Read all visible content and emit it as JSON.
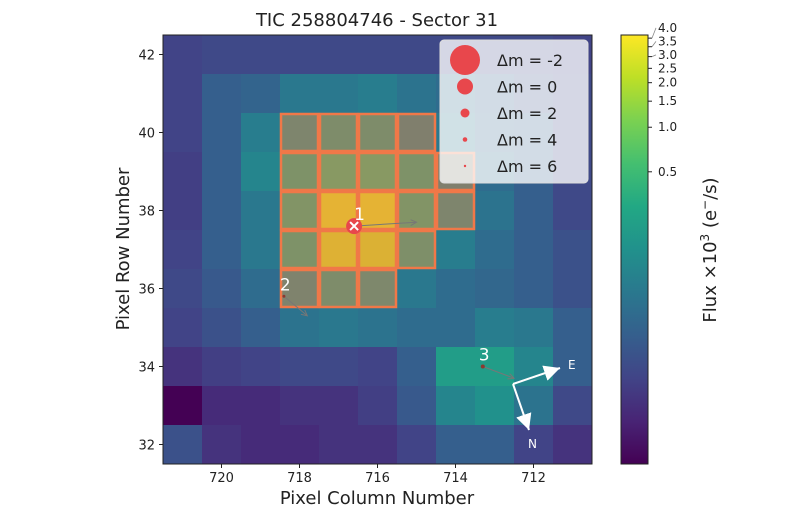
{
  "chart_data": {
    "type": "heatmap",
    "title": "TIC 258804746 - Sector 31",
    "xlabel": "Pixel Column Number",
    "ylabel": "Pixel Row Number",
    "x_inverted": true,
    "columns": [
      721,
      720,
      719,
      718,
      717,
      716,
      715,
      714,
      713,
      712,
      711
    ],
    "rows": [
      42,
      41,
      40,
      39,
      38,
      37,
      36,
      35,
      34,
      33,
      32
    ],
    "x_ticks": [
      720,
      718,
      716,
      714,
      712
    ],
    "y_ticks": [
      42,
      40,
      38,
      36,
      34,
      32
    ],
    "values": [
      [
        0.02,
        0.023,
        0.023,
        0.023,
        0.023,
        0.023,
        0.023,
        0.023,
        0.023,
        0.023,
        0.02
      ],
      [
        0.02,
        0.039,
        0.045,
        0.076,
        0.076,
        0.088,
        0.067,
        0.055,
        0.039,
        0.028,
        0.023
      ],
      [
        0.02,
        0.039,
        0.088,
        0.149,
        0.21,
        0.21,
        0.107,
        0.076,
        0.045,
        0.039,
        0.023
      ],
      [
        0.018,
        0.039,
        0.107,
        0.29,
        0.41,
        0.41,
        0.29,
        0.107,
        0.055,
        0.039,
        0.023
      ],
      [
        0.018,
        0.039,
        0.076,
        0.33,
        3.0,
        3.0,
        0.33,
        0.149,
        0.067,
        0.039,
        0.023
      ],
      [
        0.02,
        0.039,
        0.076,
        0.29,
        2.63,
        2.46,
        0.25,
        0.088,
        0.055,
        0.039,
        0.028
      ],
      [
        0.023,
        0.034,
        0.055,
        0.13,
        0.21,
        0.17,
        0.076,
        0.055,
        0.048,
        0.039,
        0.028
      ],
      [
        0.02,
        0.028,
        0.039,
        0.067,
        0.076,
        0.067,
        0.055,
        0.055,
        0.088,
        0.076,
        0.039
      ],
      [
        0.014,
        0.018,
        0.02,
        0.023,
        0.023,
        0.02,
        0.039,
        0.21,
        0.21,
        0.107,
        0.039
      ],
      [
        0.0053,
        0.012,
        0.012,
        0.014,
        0.014,
        0.018,
        0.034,
        0.107,
        0.149,
        0.067,
        0.023
      ],
      [
        0.028,
        0.014,
        0.012,
        0.012,
        0.014,
        0.014,
        0.02,
        0.039,
        0.039,
        0.02,
        0.014
      ]
    ],
    "colormap": "viridis",
    "colorbar": {
      "label_main": "Flux ×10",
      "label_exp": "3",
      "label_unit": " (e",
      "label_unit_sup": "−",
      "label_unit_end": "/s)",
      "ticks": [
        4.0,
        3.5,
        3.0,
        2.5,
        2.0,
        1.5,
        1.0,
        0.5
      ],
      "tick_labels": [
        "4.0",
        "3.5",
        "3.0",
        "2.5",
        "2.0",
        "1.5",
        "1.0",
        "0.5"
      ]
    },
    "aperture": [
      [
        40,
        718
      ],
      [
        40,
        717
      ],
      [
        40,
        716
      ],
      [
        40,
        715
      ],
      [
        39,
        718
      ],
      [
        39,
        717
      ],
      [
        39,
        716
      ],
      [
        39,
        715
      ],
      [
        39,
        714
      ],
      [
        38,
        718
      ],
      [
        38,
        717
      ],
      [
        38,
        716
      ],
      [
        38,
        715
      ],
      [
        38,
        714
      ],
      [
        37,
        718
      ],
      [
        37,
        717
      ],
      [
        37,
        716
      ],
      [
        37,
        715
      ],
      [
        36,
        718
      ],
      [
        36,
        717
      ],
      [
        36,
        716
      ]
    ],
    "aperture_color": "#f07848",
    "stars": [
      {
        "label": "1",
        "column": 716.6,
        "row": 37.6,
        "dm": 0,
        "target": true,
        "motion_to": [
          715.0,
          37.7
        ]
      },
      {
        "label": "2",
        "column": 718.4,
        "row": 35.8,
        "dm": 6,
        "target": false,
        "motion_to": [
          717.8,
          35.3
        ]
      },
      {
        "label": "3",
        "column": 713.3,
        "row": 34.0,
        "dm": 4,
        "target": false,
        "motion_to": [
          712.5,
          33.7
        ]
      }
    ],
    "star_color": "#e8474c",
    "legend": {
      "placement": "top-right",
      "entries": [
        {
          "dm": -2,
          "label": "Δm =  -2"
        },
        {
          "dm": 0,
          "label": "Δm =  0"
        },
        {
          "dm": 2,
          "label": "Δm =  2"
        },
        {
          "dm": 4,
          "label": "Δm =  4"
        },
        {
          "dm": 6,
          "label": "Δm =  6"
        }
      ]
    },
    "compass": {
      "east": "E",
      "north": "N"
    }
  }
}
